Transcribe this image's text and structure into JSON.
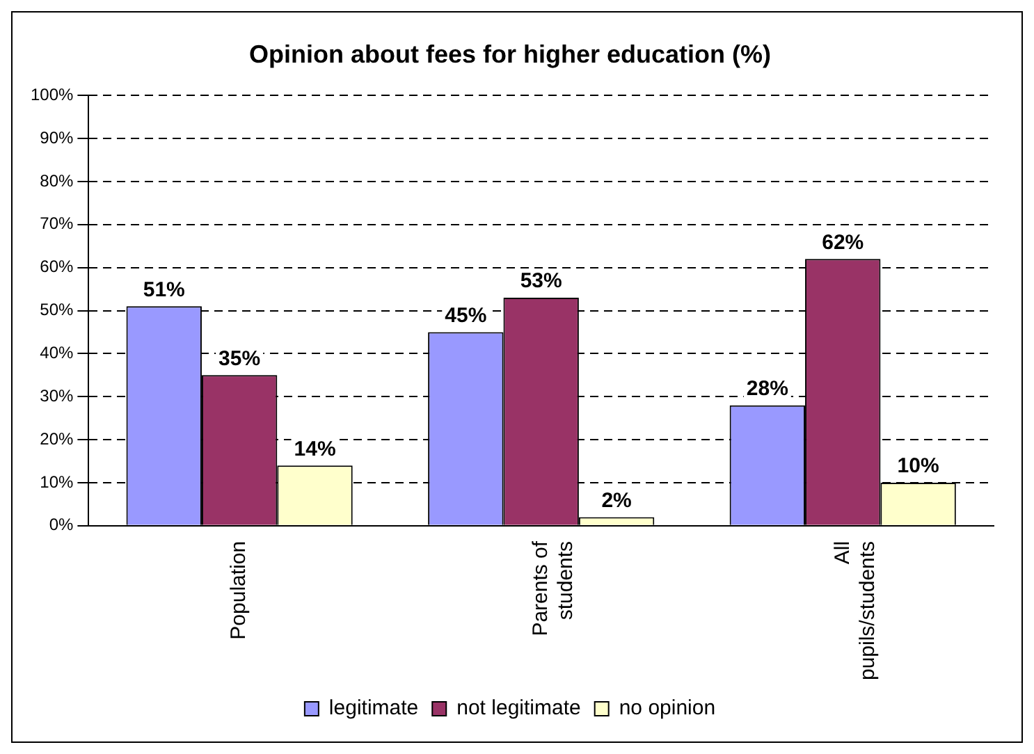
{
  "chart_data": {
    "type": "bar",
    "title": "Opinion about fees for higher education (%)",
    "categories": [
      "Population",
      "Parents of students",
      "All pupils/students"
    ],
    "series": [
      {
        "name": "legitimate",
        "color": "#9999ff",
        "values": [
          51,
          45,
          28
        ],
        "value_labels": [
          "51%",
          "45%",
          "28%"
        ]
      },
      {
        "name": "not legitimate",
        "color": "#993366",
        "values": [
          35,
          53,
          62
        ],
        "value_labels": [
          "35%",
          "53%",
          "62%"
        ]
      },
      {
        "name": "no opinion",
        "color": "#ffffcc",
        "values": [
          14,
          2,
          10
        ],
        "value_labels": [
          "14%",
          "2%",
          "10%"
        ]
      }
    ],
    "ylim": [
      0,
      100
    ],
    "yticks": [
      {
        "value": 0,
        "label": "0%"
      },
      {
        "value": 10,
        "label": "10%"
      },
      {
        "value": 20,
        "label": "20%"
      },
      {
        "value": 30,
        "label": "30%"
      },
      {
        "value": 40,
        "label": "40%"
      },
      {
        "value": 50,
        "label": "50%"
      },
      {
        "value": 60,
        "label": "60%"
      },
      {
        "value": 70,
        "label": "70%"
      },
      {
        "value": 80,
        "label": "80%"
      },
      {
        "value": 90,
        "label": "90%"
      },
      {
        "value": 100,
        "label": "100%"
      }
    ],
    "grid": "y",
    "legend": "bottom"
  }
}
